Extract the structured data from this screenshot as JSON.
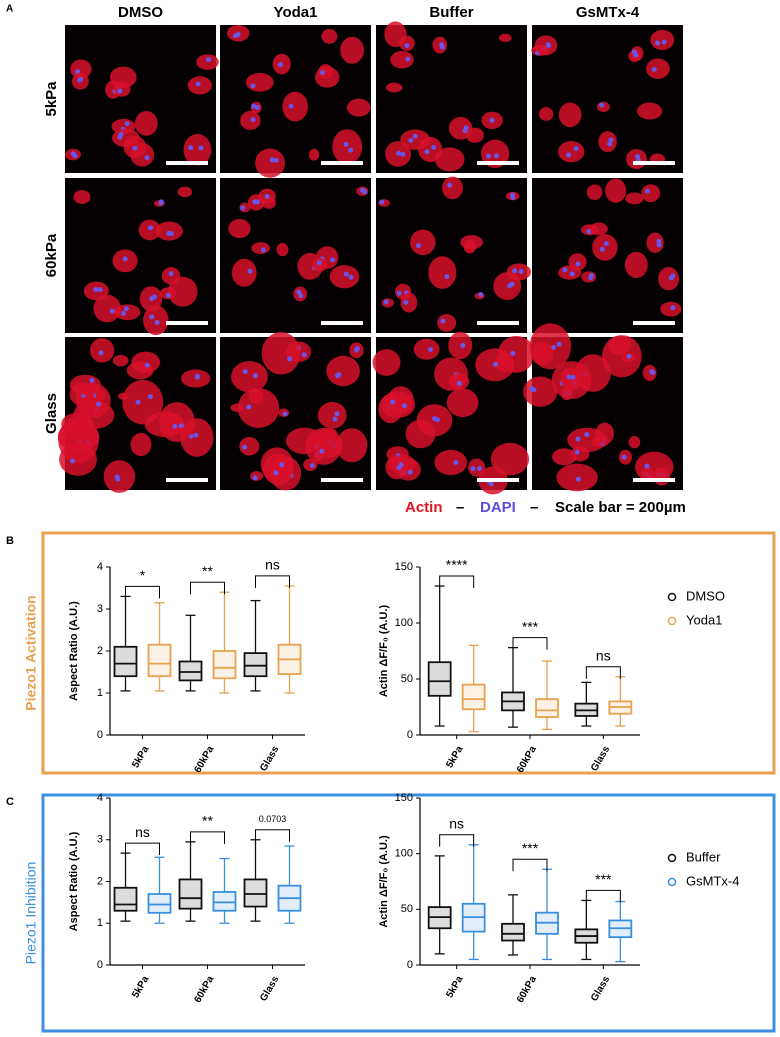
{
  "figure": {
    "panel_a": "A",
    "panel_b": "B",
    "panel_c": "C",
    "columns": [
      "DMSO",
      "Yoda1",
      "Buffer",
      "GsMTx-4"
    ],
    "rows": [
      "5kPa",
      "60kPa",
      "Glass"
    ],
    "legend": {
      "actin": "Actin",
      "dash1": "–",
      "dapi": "DAPI",
      "dash2": "–",
      "scale": "Scale bar = 200µm"
    },
    "label_b": "Piezo1 Activation",
    "label_c": "Piezo1 Inhibition"
  },
  "chart_data": [
    {
      "type": "box",
      "ylabel": "Aspect Ratio (A.U.)",
      "categories": [
        "5kPa",
        "60kPa",
        "Glass"
      ],
      "ylim": [
        0,
        4
      ],
      "yticks": [
        0,
        1,
        2,
        3,
        4
      ],
      "significance": [
        "*",
        "**",
        "ns"
      ],
      "series": [
        {
          "name": "DMSO",
          "color": "#111111",
          "boxes": [
            {
              "min": 1.05,
              "q1": 1.4,
              "median": 1.7,
              "q3": 2.1,
              "max": 3.3
            },
            {
              "min": 1.05,
              "q1": 1.3,
              "median": 1.5,
              "q3": 1.75,
              "max": 2.85
            },
            {
              "min": 1.05,
              "q1": 1.4,
              "median": 1.65,
              "q3": 1.95,
              "max": 3.2
            }
          ]
        },
        {
          "name": "Yoda1",
          "color": "#e8a14e",
          "boxes": [
            {
              "min": 1.05,
              "q1": 1.4,
              "median": 1.7,
              "q3": 2.15,
              "max": 3.15
            },
            {
              "min": 1.0,
              "q1": 1.35,
              "median": 1.6,
              "q3": 2.0,
              "max": 3.4
            },
            {
              "min": 1.0,
              "q1": 1.45,
              "median": 1.8,
              "q3": 2.15,
              "max": 3.55
            }
          ]
        }
      ]
    },
    {
      "type": "box",
      "ylabel": "Actin ΔF/F₀ (A.U.)",
      "categories": [
        "5kPa",
        "60kPa",
        "Glass"
      ],
      "ylim": [
        0,
        150
      ],
      "yticks": [
        0,
        50,
        100,
        150
      ],
      "significance": [
        "****",
        "***",
        "ns"
      ],
      "series": [
        {
          "name": "DMSO",
          "color": "#111111",
          "boxes": [
            {
              "min": 8,
              "q1": 35,
              "median": 48,
              "q3": 65,
              "max": 133
            },
            {
              "min": 7,
              "q1": 22,
              "median": 30,
              "q3": 38,
              "max": 78
            },
            {
              "min": 8,
              "q1": 17,
              "median": 22,
              "q3": 28,
              "max": 47
            }
          ]
        },
        {
          "name": "Yoda1",
          "color": "#e8a14e",
          "boxes": [
            {
              "min": 3,
              "q1": 23,
              "median": 32,
              "q3": 45,
              "max": 80
            },
            {
              "min": 5,
              "q1": 16,
              "median": 22,
              "q3": 32,
              "max": 66
            },
            {
              "min": 8,
              "q1": 19,
              "median": 25,
              "q3": 30,
              "max": 52
            }
          ]
        }
      ]
    },
    {
      "type": "box",
      "ylabel": "Aspect Ratio (A.U.)",
      "categories": [
        "5kPa",
        "60kPa",
        "Glass"
      ],
      "ylim": [
        0,
        4
      ],
      "yticks": [
        0,
        1,
        2,
        3,
        4
      ],
      "significance": [
        "ns",
        "**",
        "0.0703"
      ],
      "series": [
        {
          "name": "Buffer",
          "color": "#111111",
          "boxes": [
            {
              "min": 1.05,
              "q1": 1.3,
              "median": 1.45,
              "q3": 1.85,
              "max": 2.68
            },
            {
              "min": 1.05,
              "q1": 1.35,
              "median": 1.6,
              "q3": 2.05,
              "max": 2.95
            },
            {
              "min": 1.05,
              "q1": 1.4,
              "median": 1.7,
              "q3": 2.05,
              "max": 3.0
            }
          ]
        },
        {
          "name": "GsMTx-4",
          "color": "#3a8fdf",
          "boxes": [
            {
              "min": 1.0,
              "q1": 1.25,
              "median": 1.45,
              "q3": 1.7,
              "max": 2.58
            },
            {
              "min": 1.0,
              "q1": 1.3,
              "median": 1.5,
              "q3": 1.75,
              "max": 2.55
            },
            {
              "min": 1.0,
              "q1": 1.3,
              "median": 1.6,
              "q3": 1.9,
              "max": 2.85
            }
          ]
        }
      ]
    },
    {
      "type": "box",
      "ylabel": "Actin ΔF/F₀ (A.U.)",
      "categories": [
        "5kPa",
        "60kPa",
        "Glass"
      ],
      "ylim": [
        0,
        150
      ],
      "yticks": [
        0,
        50,
        100,
        150
      ],
      "significance": [
        "ns",
        "***",
        "***"
      ],
      "series": [
        {
          "name": "Buffer",
          "color": "#111111",
          "boxes": [
            {
              "min": 10,
              "q1": 33,
              "median": 43,
              "q3": 52,
              "max": 98
            },
            {
              "min": 9,
              "q1": 22,
              "median": 28,
              "q3": 37,
              "max": 63
            },
            {
              "min": 5,
              "q1": 20,
              "median": 26,
              "q3": 32,
              "max": 58
            }
          ]
        },
        {
          "name": "GsMTx-4",
          "color": "#3a8fdf",
          "boxes": [
            {
              "min": 5,
              "q1": 30,
              "median": 43,
              "q3": 55,
              "max": 108
            },
            {
              "min": 5,
              "q1": 28,
              "median": 38,
              "q3": 47,
              "max": 86
            },
            {
              "min": 3,
              "q1": 25,
              "median": 33,
              "q3": 40,
              "max": 57
            }
          ]
        }
      ]
    }
  ]
}
